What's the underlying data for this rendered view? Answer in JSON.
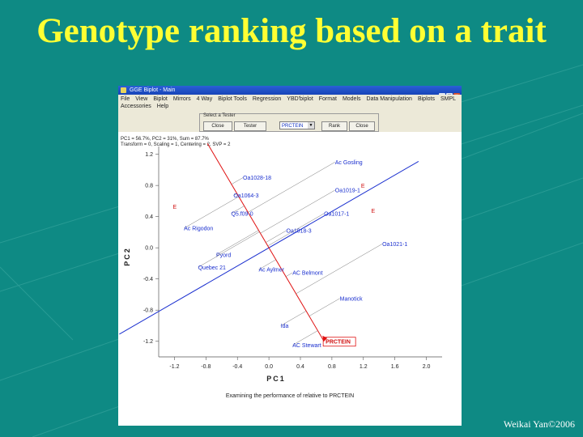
{
  "slide": {
    "title": "Genotype ranking based on a trait",
    "credit": "Weikai Yan©2006"
  },
  "window": {
    "title": "GGE Biplot - Main",
    "controls": [
      "_",
      "□",
      "×"
    ],
    "menu_row1": [
      "File",
      "View",
      "Biplot",
      "Mirrors",
      "4 Way",
      "Biplot Tools",
      "Regression",
      "YBD'biplot",
      "Format",
      "Models",
      "Data Manipulation",
      "Biplots",
      "SMPL"
    ],
    "menu_row2": [
      "Accessories",
      "Help"
    ],
    "tester_panel": {
      "legend": "Select a Tester",
      "buttons": [
        "Close",
        "Tester",
        "Rank",
        "Close"
      ],
      "selected": "PRCTEIN"
    },
    "status_lines": [
      "PC1 = 56.7%, PC2 = 31%, Sum = 87.7%",
      "Transform = 0, Scaling = 1, Centering = 2, SVP = 2"
    ]
  },
  "colors": {
    "slide_bg": "#0e8a84",
    "title": "#ffff33",
    "ranking_axis": "#1a2fcf",
    "tester_line": "#e01010",
    "genotype_label": "#1a2fcf",
    "env_label": "#d01010"
  },
  "chart_data": {
    "type": "scatter",
    "xlabel": "PC1",
    "ylabel": "PC2",
    "xlim": [
      -1.4,
      2.2
    ],
    "ylim": [
      -1.4,
      1.3
    ],
    "x_ticks": [
      "-1.2",
      "-0.8",
      "-0.4",
      "0.0",
      "0.4",
      "0.8",
      "1.2",
      "1.6",
      "2.0"
    ],
    "y_ticks": [
      "1.2",
      "0.8",
      "0.4",
      "0.0",
      "-0.4",
      "-0.8",
      "-1.2"
    ],
    "tester": {
      "name": "PRCTEIN",
      "x": 0.7,
      "y": -1.2
    },
    "genotypes": [
      {
        "name": "Ac Gosling",
        "x": 0.84,
        "y": 1.1
      },
      {
        "name": "Oa1028-18",
        "x": -0.33,
        "y": 0.9
      },
      {
        "name": "Oa1019-1",
        "x": 0.84,
        "y": 0.74
      },
      {
        "name": "Oa1064-3",
        "x": -0.45,
        "y": 0.67
      },
      {
        "name": "Q5.f09-0",
        "x": -0.48,
        "y": 0.44
      },
      {
        "name": "Oa1017-1",
        "x": 0.7,
        "y": 0.44
      },
      {
        "name": "Ac Rigodon",
        "x": -1.08,
        "y": 0.25
      },
      {
        "name": "Oa1018-3",
        "x": 0.22,
        "y": 0.22
      },
      {
        "name": "Oa1021-1",
        "x": 1.44,
        "y": 0.05
      },
      {
        "name": "Pyord",
        "x": -0.67,
        "y": -0.09
      },
      {
        "name": "Quebec 21",
        "x": -0.9,
        "y": -0.25
      },
      {
        "name": "Ac Aylmer",
        "x": -0.13,
        "y": -0.28
      },
      {
        "name": "AC Belmont",
        "x": 0.3,
        "y": -0.32
      },
      {
        "name": "Manotick",
        "x": 0.9,
        "y": -0.65
      },
      {
        "name": "Ida",
        "x": 0.15,
        "y": -1.0
      },
      {
        "name": "AC Stewart",
        "x": 0.3,
        "y": -1.25
      }
    ],
    "environments": [
      {
        "name": "E",
        "x": 1.17,
        "y": 0.77
      },
      {
        "name": "E",
        "x": -1.22,
        "y": 0.5
      },
      {
        "name": "E",
        "x": 1.3,
        "y": 0.45
      }
    ],
    "caption": "Examining the performance of relative to PRCTEIN"
  }
}
